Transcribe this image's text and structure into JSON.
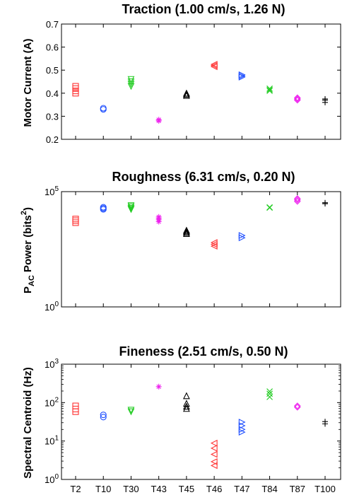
{
  "chart_data": [
    {
      "type": "scatter",
      "title": "Traction (1.00 cm/s, 1.26 N)",
      "ylabel": "Motor Current (A)",
      "yscale": "linear",
      "ylim": [
        0.2,
        0.7
      ],
      "yticks": [
        "0.2",
        "0.3",
        "0.4",
        "0.5",
        "0.6",
        "0.7"
      ],
      "categories": [
        "T2",
        "T10",
        "T30",
        "T43",
        "T45",
        "T46",
        "T47",
        "T84",
        "T87",
        "T100"
      ],
      "series": [
        {
          "category": "T2",
          "marker": "square",
          "color": "#ff3333",
          "values": [
            0.4,
            0.41,
            0.42,
            0.43
          ]
        },
        {
          "category": "T10",
          "marker": "circle",
          "color": "#1f4fff",
          "values": [
            0.33,
            0.335
          ]
        },
        {
          "category": "T30",
          "marker": "triangle-down",
          "color": "#22cc22",
          "values": [
            0.43,
            0.44,
            0.45,
            0.46
          ]
        },
        {
          "category": "T43",
          "marker": "star",
          "color": "#ee22ee",
          "values": [
            0.28,
            0.285
          ]
        },
        {
          "category": "T45",
          "marker": "triangle-up",
          "color": "#000000",
          "values": [
            0.39,
            0.395,
            0.4
          ]
        },
        {
          "category": "T46",
          "marker": "triangle-left",
          "color": "#ff3333",
          "values": [
            0.515,
            0.52,
            0.525
          ]
        },
        {
          "category": "T47",
          "marker": "triangle-right",
          "color": "#1f4fff",
          "values": [
            0.47,
            0.475,
            0.48
          ]
        },
        {
          "category": "T84",
          "marker": "x",
          "color": "#22cc22",
          "values": [
            0.41,
            0.415,
            0.42
          ]
        },
        {
          "category": "T87",
          "marker": "diamond",
          "color": "#ee22ee",
          "values": [
            0.37,
            0.375,
            0.38
          ]
        },
        {
          "category": "T100",
          "marker": "plus",
          "color": "#000000",
          "values": [
            0.36,
            0.37,
            0.375
          ]
        }
      ]
    },
    {
      "type": "scatter",
      "title": "Roughness (6.31 cm/s, 0.20 N)",
      "ylabel_main": "P",
      "ylabel_sub": "AC",
      "ylabel_rest": " Power (bits",
      "ylabel_sup": "2",
      "ylabel_end": ")",
      "yscale": "log",
      "ylim": [
        1,
        100000
      ],
      "yticks": [
        {
          "base": "10",
          "exp": "0",
          "value": 1
        },
        {
          "base": "10",
          "exp": "5",
          "value": 100000
        }
      ],
      "categories": [
        "T2",
        "T10",
        "T30",
        "T43",
        "T45",
        "T46",
        "T47",
        "T84",
        "T87",
        "T100"
      ],
      "series": [
        {
          "category": "T2",
          "marker": "square",
          "color": "#ff3333",
          "values": [
            4500,
            5500,
            6500
          ]
        },
        {
          "category": "T10",
          "marker": "circle",
          "color": "#1f4fff",
          "values": [
            17000,
            19000,
            21000
          ]
        },
        {
          "category": "T30",
          "marker": "triangle-down",
          "color": "#22cc22",
          "values": [
            17000,
            19000,
            22000,
            25000
          ]
        },
        {
          "category": "T43",
          "marker": "star",
          "color": "#ee22ee",
          "values": [
            5000,
            6000,
            7000,
            8000
          ]
        },
        {
          "category": "T45",
          "marker": "triangle-up",
          "color": "#000000",
          "values": [
            1500,
            1700,
            1900,
            2100
          ]
        },
        {
          "category": "T46",
          "marker": "triangle-left",
          "color": "#ff3333",
          "values": [
            430,
            520,
            620
          ]
        },
        {
          "category": "T47",
          "marker": "triangle-right",
          "color": "#1f4fff",
          "values": [
            1000,
            1250
          ]
        },
        {
          "category": "T84",
          "marker": "x",
          "color": "#22cc22",
          "values": [
            20000,
            21000
          ]
        },
        {
          "category": "T87",
          "marker": "diamond",
          "color": "#ee22ee",
          "values": [
            38000,
            44000,
            50000
          ]
        },
        {
          "category": "T100",
          "marker": "plus",
          "color": "#000000",
          "values": [
            30000,
            33000
          ]
        }
      ]
    },
    {
      "type": "scatter",
      "title": "Fineness (2.51 cm/s, 0.50 N)",
      "ylabel": "Spectral Centroid (Hz)",
      "yscale": "log",
      "ylim": [
        1,
        1000
      ],
      "yticks": [
        {
          "base": "10",
          "exp": "0",
          "value": 1
        },
        {
          "base": "10",
          "exp": "1",
          "value": 10
        },
        {
          "base": "10",
          "exp": "2",
          "value": 100
        },
        {
          "base": "10",
          "exp": "3",
          "value": 1000
        }
      ],
      "categories": [
        "T2",
        "T10",
        "T30",
        "T43",
        "T45",
        "T46",
        "T47",
        "T84",
        "T87",
        "T100"
      ],
      "series": [
        {
          "category": "T2",
          "marker": "square",
          "color": "#ff3333",
          "values": [
            58,
            68,
            82
          ]
        },
        {
          "category": "T10",
          "marker": "circle",
          "color": "#1f4fff",
          "values": [
            42,
            48
          ]
        },
        {
          "category": "T30",
          "marker": "triangle-down",
          "color": "#22cc22",
          "values": [
            58,
            64
          ]
        },
        {
          "category": "T43",
          "marker": "star",
          "color": "#ee22ee",
          "values": [
            260
          ]
        },
        {
          "category": "T45",
          "marker": "triangle-up",
          "color": "#000000",
          "values": [
            70,
            80,
            95,
            150
          ]
        },
        {
          "category": "T46",
          "marker": "triangle-left",
          "color": "#ff3333",
          "values": [
            2.3,
            2.9,
            4.5,
            6.5,
            8.8
          ]
        },
        {
          "category": "T47",
          "marker": "triangle-right",
          "color": "#1f4fff",
          "values": [
            17,
            20,
            25,
            31
          ]
        },
        {
          "category": "T84",
          "marker": "x",
          "color": "#22cc22",
          "values": [
            140,
            170,
            195
          ]
        },
        {
          "category": "T87",
          "marker": "diamond",
          "color": "#ee22ee",
          "values": [
            76,
            82
          ]
        },
        {
          "category": "T100",
          "marker": "plus",
          "color": "#000000",
          "values": [
            28,
            32
          ]
        }
      ]
    }
  ]
}
